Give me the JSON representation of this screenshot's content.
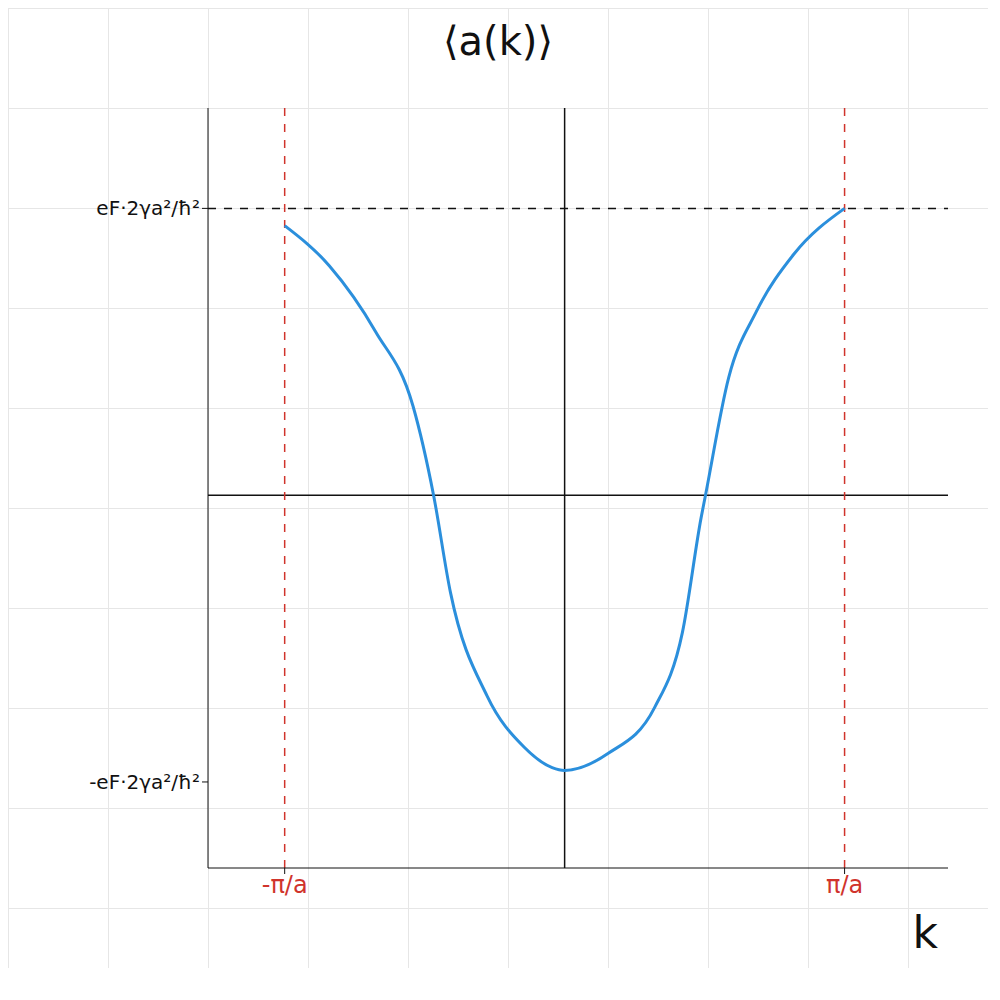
{
  "chart_data": {
    "type": "line",
    "x_label": "k",
    "y_label": "⟨a(k)⟩",
    "x": [
      -3.14,
      -2.64,
      -2.12,
      -1.7,
      -1.47,
      -1.28,
      -0.87,
      -0.45,
      -0.14,
      0,
      0.49,
      1.01,
      1.32,
      1.53,
      1.58,
      1.84,
      2.15,
      2.57,
      3.14
    ],
    "values": [
      0.94,
      0.8,
      0.57,
      0.31,
      0,
      -0.34,
      -0.7,
      -0.88,
      -0.95,
      -0.96,
      -0.9,
      -0.74,
      -0.48,
      -0.08,
      0,
      0.41,
      0.64,
      0.84,
      1.0
    ],
    "color": "#2b8fdc",
    "xlim": [
      -4,
      4.3
    ],
    "ylim": [
      -1.3,
      1.35
    ],
    "xticks": [
      {
        "value": -3.14,
        "label": "-π/a"
      },
      {
        "value": 3.14,
        "label": "π/a"
      }
    ],
    "yticks": [
      {
        "value": -1,
        "label": "-eF·2γa²/ħ²"
      },
      {
        "value": 1,
        "label": "eF·2γa²/ħ²"
      }
    ],
    "grid": false
  }
}
